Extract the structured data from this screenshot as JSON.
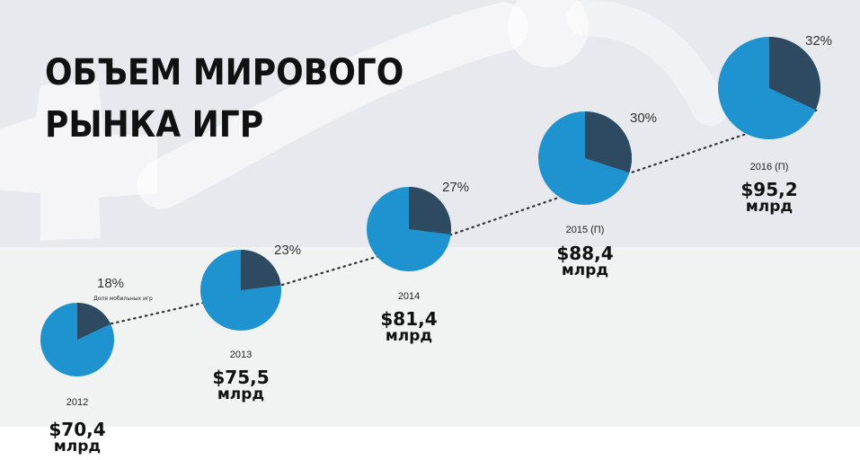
{
  "title": "ОБЪЕМ МИРОВОГО\nРЫНКА ИГР",
  "series_note": "Доля мобильных игр",
  "unit_label": "млрд",
  "colors": {
    "mobile": "#2d4a60",
    "other": "#1e93cf",
    "dots": "#333333"
  },
  "chart_data": {
    "type": "pie",
    "title": "ОБЪЕМ МИРОВОГО РЫНКА ИГР",
    "points": [
      {
        "year": "2012",
        "value": "$70,4",
        "mobile_share": 18,
        "mobile_label": "18%"
      },
      {
        "year": "2013",
        "value": "$75,5",
        "mobile_share": 23,
        "mobile_label": "23%"
      },
      {
        "year": "2014",
        "value": "$81,4",
        "mobile_share": 27,
        "mobile_label": "27%"
      },
      {
        "year": "2015 (П)",
        "value": "$88,4",
        "mobile_share": 30,
        "mobile_label": "30%"
      },
      {
        "year": "2016 (П)",
        "value": "$95,2",
        "mobile_share": 32,
        "mobile_label": "32%"
      }
    ]
  }
}
